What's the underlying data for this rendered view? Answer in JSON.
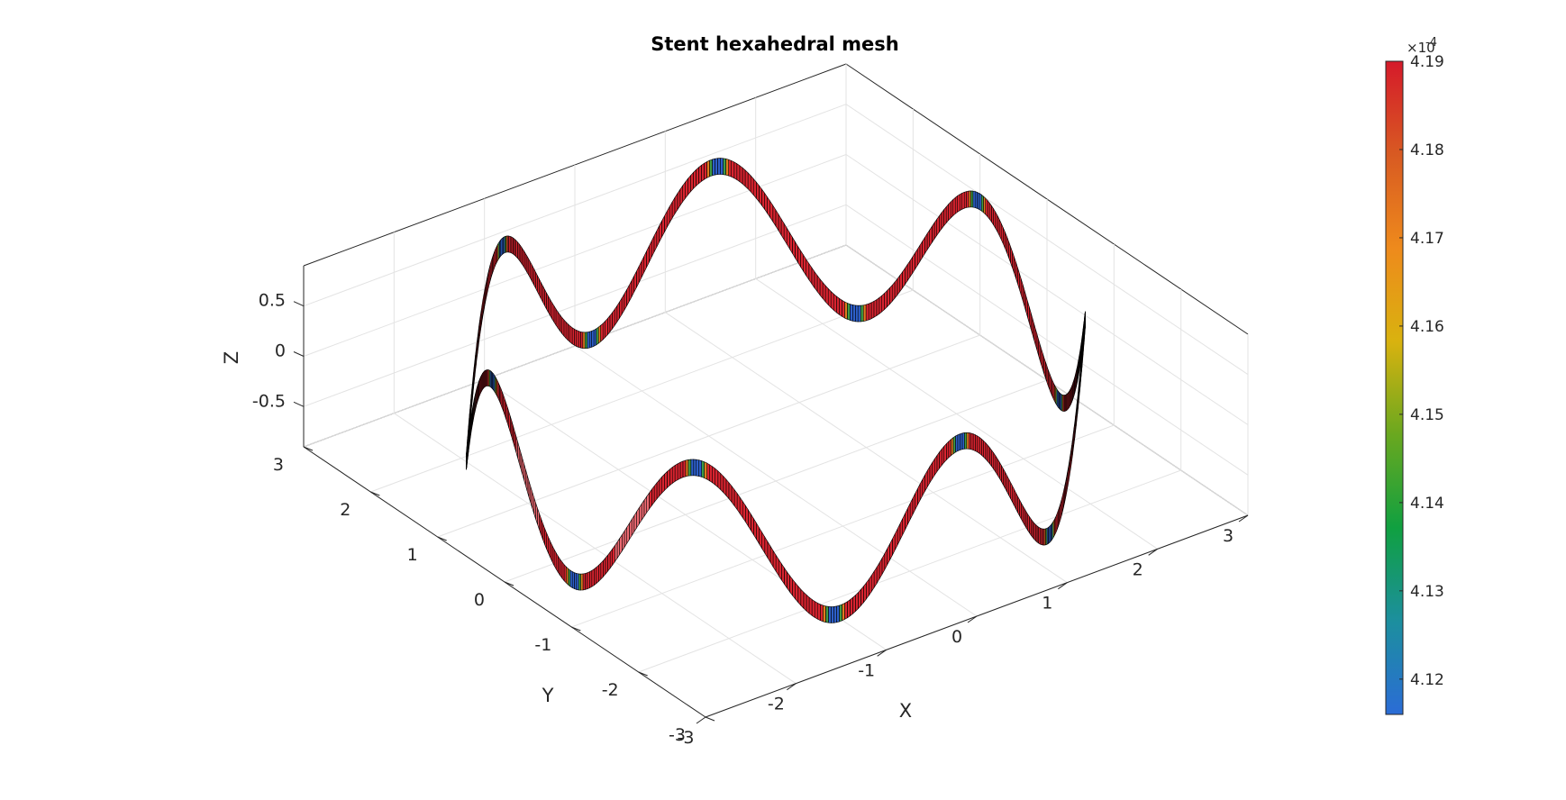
{
  "chart_data": {
    "type": "surface3d",
    "title": "Stent hexahedral mesh",
    "xlabel": "X",
    "ylabel": "Y",
    "zlabel": "Z",
    "xlim": [
      -3,
      3
    ],
    "ylim": [
      -3,
      3
    ],
    "zlim": [
      -0.9,
      0.9
    ],
    "xticks": [
      "-3",
      "-2",
      "-1",
      "0",
      "1",
      "2",
      "3"
    ],
    "yticks": [
      "-3",
      "-2",
      "-1",
      "0",
      "1",
      "2",
      "3"
    ],
    "zticks": [
      "-0.5",
      "0",
      "0.5"
    ],
    "xtick_values": [
      -3,
      -2,
      -1,
      0,
      1,
      2,
      3
    ],
    "ytick_values": [
      -3,
      -2,
      -1,
      0,
      1,
      2,
      3
    ],
    "ztick_values": [
      -0.5,
      0,
      0.5
    ],
    "grid": true,
    "stent": {
      "radius": 2.75,
      "amplitude": 0.72,
      "waves": 7,
      "band_height": 0.08
    },
    "colorbar": {
      "label_values": [
        "4.12",
        "4.13",
        "4.14",
        "4.15",
        "4.16",
        "4.17",
        "4.18",
        "4.19"
      ],
      "exponent_base": "×10",
      "exponent": "-4",
      "min": 4.116,
      "max": 4.19,
      "colormap": [
        "#2b6cd6",
        "#1c8f9e",
        "#10a040",
        "#6aa81f",
        "#d9b20f",
        "#ee8a1c",
        "#d85a22",
        "#d51a2a"
      ]
    },
    "colors": {
      "high": "#d8232f",
      "edge": "#000000",
      "peak_low": "#2d5fc9",
      "peak_mid": "#3f9b45",
      "peak_orange": "#e07a1f"
    }
  }
}
